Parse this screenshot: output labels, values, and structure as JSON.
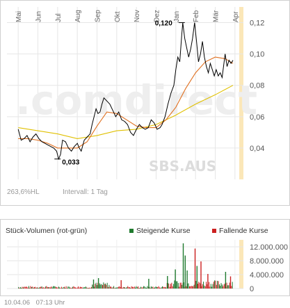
{
  "chart_data": [
    {
      "type": "line",
      "title": "",
      "watermark": "SBS.AUS",
      "brand_watermark": ".comdirect",
      "months": [
        "Mai",
        "Jun",
        "Jul",
        "Aug",
        "Sep",
        "Okt",
        "Nov",
        "Dez",
        "Jan",
        "Feb",
        "Mär",
        "Apr"
      ],
      "ylim": [
        0.02,
        0.13
      ],
      "yticks": [
        0.04,
        0.06,
        0.08,
        0.1,
        0.12
      ],
      "ytick_labels": [
        "0,04",
        "0,06",
        "0,08",
        "0,10",
        "0,12"
      ],
      "grid": true,
      "annotations": [
        {
          "label": "0,120",
          "month_index": 8.35,
          "y": 0.12
        },
        {
          "label": "0,033",
          "month_index": 2.05,
          "y": 0.033
        }
      ],
      "series": [
        {
          "name": "",
          "color": "#000000",
          "points": [
            [
              0.0,
              0.052
            ],
            [
              0.15,
              0.045
            ],
            [
              0.3,
              0.046
            ],
            [
              0.45,
              0.048
            ],
            [
              0.6,
              0.044
            ],
            [
              0.75,
              0.047
            ],
            [
              0.9,
              0.049
            ],
            [
              1.05,
              0.046
            ],
            [
              1.2,
              0.044
            ],
            [
              1.35,
              0.043
            ],
            [
              1.5,
              0.042
            ],
            [
              1.65,
              0.041
            ],
            [
              1.8,
              0.04
            ],
            [
              1.95,
              0.038
            ],
            [
              2.05,
              0.033
            ],
            [
              2.15,
              0.036
            ],
            [
              2.25,
              0.045
            ],
            [
              2.4,
              0.044
            ],
            [
              2.55,
              0.04
            ],
            [
              2.7,
              0.038
            ],
            [
              2.85,
              0.041
            ],
            [
              3.0,
              0.043
            ],
            [
              3.1,
              0.04
            ],
            [
              3.2,
              0.038
            ],
            [
              3.35,
              0.045
            ],
            [
              3.5,
              0.047
            ],
            [
              3.65,
              0.049
            ],
            [
              3.75,
              0.055
            ],
            [
              3.85,
              0.06
            ],
            [
              3.95,
              0.065
            ],
            [
              4.05,
              0.062
            ],
            [
              4.15,
              0.063
            ],
            [
              4.25,
              0.068
            ],
            [
              4.35,
              0.072
            ],
            [
              4.5,
              0.07
            ],
            [
              4.65,
              0.068
            ],
            [
              4.8,
              0.064
            ],
            [
              4.95,
              0.06
            ],
            [
              5.1,
              0.063
            ],
            [
              5.25,
              0.058
            ],
            [
              5.4,
              0.057
            ],
            [
              5.55,
              0.055
            ],
            [
              5.7,
              0.05
            ],
            [
              5.85,
              0.048
            ],
            [
              6.0,
              0.052
            ],
            [
              6.15,
              0.055
            ],
            [
              6.3,
              0.053
            ],
            [
              6.45,
              0.052
            ],
            [
              6.6,
              0.053
            ],
            [
              6.75,
              0.058
            ],
            [
              6.9,
              0.056
            ],
            [
              7.05,
              0.052
            ],
            [
              7.2,
              0.053
            ],
            [
              7.3,
              0.055
            ],
            [
              7.45,
              0.06
            ],
            [
              7.6,
              0.068
            ],
            [
              7.75,
              0.075
            ],
            [
              7.9,
              0.08
            ],
            [
              8.0,
              0.09
            ],
            [
              8.1,
              0.098
            ],
            [
              8.2,
              0.095
            ],
            [
              8.3,
              0.112
            ],
            [
              8.35,
              0.12
            ],
            [
              8.45,
              0.11
            ],
            [
              8.55,
              0.104
            ],
            [
              8.65,
              0.098
            ],
            [
              8.75,
              0.103
            ],
            [
              8.85,
              0.11
            ],
            [
              8.95,
              0.12
            ],
            [
              9.05,
              0.108
            ],
            [
              9.15,
              0.095
            ],
            [
              9.25,
              0.1
            ],
            [
              9.35,
              0.108
            ],
            [
              9.45,
              0.098
            ],
            [
              9.55,
              0.092
            ],
            [
              9.65,
              0.088
            ],
            [
              9.75,
              0.094
            ],
            [
              9.85,
              0.09
            ],
            [
              9.95,
              0.086
            ],
            [
              10.05,
              0.09
            ],
            [
              10.15,
              0.086
            ],
            [
              10.25,
              0.088
            ],
            [
              10.35,
              0.085
            ],
            [
              10.5,
              0.1
            ],
            [
              10.6,
              0.092
            ],
            [
              10.7,
              0.096
            ],
            [
              10.8,
              0.094
            ],
            [
              10.9,
              0.096
            ]
          ]
        },
        {
          "name": "",
          "color": "#e07020",
          "points": [
            [
              0.0,
              0.046
            ],
            [
              0.5,
              0.046
            ],
            [
              1.0,
              0.045
            ],
            [
              1.5,
              0.043
            ],
            [
              2.0,
              0.04
            ],
            [
              2.5,
              0.04
            ],
            [
              3.0,
              0.04
            ],
            [
              3.5,
              0.044
            ],
            [
              4.0,
              0.054
            ],
            [
              4.5,
              0.063
            ],
            [
              5.0,
              0.062
            ],
            [
              5.5,
              0.058
            ],
            [
              6.0,
              0.054
            ],
            [
              6.5,
              0.053
            ],
            [
              7.0,
              0.053
            ],
            [
              7.5,
              0.058
            ],
            [
              8.0,
              0.066
            ],
            [
              8.5,
              0.078
            ],
            [
              9.0,
              0.088
            ],
            [
              9.5,
              0.095
            ],
            [
              10.0,
              0.098
            ],
            [
              10.5,
              0.097
            ],
            [
              10.9,
              0.094
            ]
          ]
        },
        {
          "name": "",
          "color": "#e0c000",
          "points": [
            [
              0.0,
              0.053
            ],
            [
              1.0,
              0.051
            ],
            [
              2.0,
              0.049
            ],
            [
              3.0,
              0.046
            ],
            [
              4.0,
              0.048
            ],
            [
              5.0,
              0.051
            ],
            [
              6.0,
              0.052
            ],
            [
              7.0,
              0.055
            ],
            [
              8.0,
              0.061
            ],
            [
              9.0,
              0.068
            ],
            [
              10.0,
              0.074
            ],
            [
              10.9,
              0.08
            ]
          ]
        }
      ]
    },
    {
      "type": "bar",
      "title": "Stück-Volumen (rot-grün)",
      "legend": [
        {
          "name": "Steigende Kurse",
          "color": "#1f7a2e"
        },
        {
          "name": "Fallende Kurse",
          "color": "#cc2020"
        }
      ],
      "ylim": [
        0,
        14000000
      ],
      "yticks": [
        0,
        4000000,
        8000000,
        12000000
      ],
      "ytick_labels": [
        "0",
        "4.000.000",
        "8.000.000",
        "12.000.000"
      ],
      "grid": true,
      "spikes": [
        {
          "month_index": 8.35,
          "value": 13000000,
          "color": "#1f7a2e"
        },
        {
          "month_index": 8.45,
          "value": 9500000,
          "color": "#1f7a2e"
        },
        {
          "month_index": 8.95,
          "value": 11500000,
          "color": "#cc2020"
        },
        {
          "month_index": 9.25,
          "value": 7800000,
          "color": "#cc2020"
        },
        {
          "month_index": 9.05,
          "value": 6500000,
          "color": "#1f7a2e"
        },
        {
          "month_index": 8.55,
          "value": 5200000,
          "color": "#1f7a2e"
        },
        {
          "month_index": 7.95,
          "value": 5500000,
          "color": "#1f7a2e"
        },
        {
          "month_index": 9.6,
          "value": 4200000,
          "color": "#cc2020"
        },
        {
          "month_index": 10.5,
          "value": 4800000,
          "color": "#1f7a2e"
        },
        {
          "month_index": 10.75,
          "value": 3500000,
          "color": "#cc2020"
        },
        {
          "month_index": 7.55,
          "value": 3600000,
          "color": "#1f7a2e"
        },
        {
          "month_index": 4.05,
          "value": 3000000,
          "color": "#1f7a2e"
        },
        {
          "month_index": 3.8,
          "value": 2600000,
          "color": "#1f7a2e"
        },
        {
          "month_index": 5.2,
          "value": 2400000,
          "color": "#cc2020"
        },
        {
          "month_index": 6.6,
          "value": 2800000,
          "color": "#1f7a2e"
        }
      ]
    }
  ],
  "info": {
    "range_label": "263,6%HL",
    "interval_label": "Intervall: 1 Tag"
  },
  "footer": {
    "date": "10.04.06",
    "time": "07:13 Uhr"
  }
}
